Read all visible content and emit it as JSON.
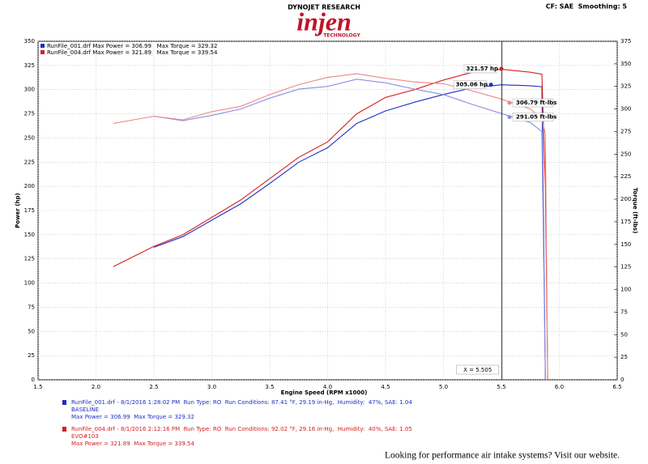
{
  "header": {
    "brand": "DYNOJET RESEARCH",
    "logo": "injen",
    "logo_sub": "TECHNOLOGY",
    "settings": "CF: SAE  Smoothing: 5"
  },
  "chart_data": {
    "type": "line",
    "xlabel": "Engine Speed (RPM x1000)",
    "ylabel": "Power (hp)",
    "y2label": "Torque (ft-lbs)",
    "x": [
      2.15,
      2.5,
      2.75,
      3,
      3.25,
      3.5,
      3.75,
      4,
      4.25,
      4.5,
      4.75,
      5,
      5.25,
      5.5,
      5.75,
      5.85,
      5.88,
      5.9
    ],
    "series": [
      {
        "color": "#1f2fbf",
        "axis": "y",
        "values": [
          null,
          137,
          148,
          165,
          182,
          203,
          225,
          240,
          265,
          278,
          287,
          295,
          302,
          305,
          304,
          303,
          0,
          null
        ]
      },
      {
        "color": "#d42020",
        "axis": "y",
        "values": [
          117,
          138,
          150,
          168,
          186,
          208,
          230,
          246,
          275,
          292,
          300,
          310,
          318,
          321,
          318,
          316,
          200,
          0
        ]
      },
      {
        "color": "#8a8fe0",
        "axis": "y2",
        "values": [
          null,
          292,
          287,
          293,
          300,
          312,
          322,
          325,
          333,
          329,
          322,
          316,
          305,
          295,
          285,
          275,
          0,
          null
        ]
      },
      {
        "color": "#e88a8a",
        "axis": "y2",
        "values": [
          284,
          292,
          288,
          297,
          303,
          316,
          327,
          335,
          339,
          334,
          330,
          328,
          320,
          311,
          300,
          289,
          272,
          0
        ]
      }
    ],
    "legend": [
      "RunFile_001.drf Max Power = 306.99   Max Torque = 329.32",
      "RunFile_004.drf Max Power = 321.89   Max Torque = 339.54"
    ],
    "xlim": [
      1.5,
      6.5
    ],
    "xticks": [
      1.5,
      {
        "value": 2,
        "label": "2.0"
      },
      2.5,
      {
        "value": 3,
        "label": "3.0"
      },
      3.5,
      {
        "value": 4,
        "label": "4.0"
      },
      4.5,
      {
        "value": 5,
        "label": "5.0"
      },
      5.5,
      {
        "value": 6,
        "label": "6.0"
      },
      6.5
    ],
    "ylim": [
      0,
      350
    ],
    "yticks": [
      0,
      25,
      50,
      75,
      100,
      125,
      150,
      175,
      200,
      225,
      250,
      275,
      300,
      325,
      350
    ],
    "y2lim": [
      0,
      375
    ],
    "y2ticks": [
      0,
      25,
      50,
      75,
      100,
      125,
      150,
      175,
      200,
      225,
      250,
      275,
      300,
      325,
      350,
      375
    ],
    "grid": true,
    "cursor": {
      "x": 5.505,
      "label": "X = 5.505"
    },
    "annotations": [
      {
        "x": 5.5,
        "y": 321.57,
        "axis": "y",
        "color": "#d42020",
        "label": "321.57 hp"
      },
      {
        "x": 5.41,
        "y": 305.06,
        "axis": "y",
        "color": "#1f2fbf",
        "label": "305.06 hp"
      },
      {
        "x": 5.57,
        "y": 306.79,
        "axis": "y2",
        "color": "#e88a8a",
        "label": "306.79 ft-lbs"
      },
      {
        "x": 5.57,
        "y": 291.05,
        "axis": "y2",
        "color": "#8a8fe0",
        "label": "291.05 ft-lbs"
      }
    ]
  },
  "runs": [
    {
      "lines": [
        "RunFile_001.drf - 8/1/2016 1:28:02 PM  Run Type: RO  Run Conditions: 87.41 °F, 29.19 in-Hg,  Humidity:  47%, SAE: 1.04",
        "BASELINE",
        "Max Power = 306.99  Max Torque = 329.32"
      ]
    },
    {
      "lines": [
        "RunFile_004.drf - 8/1/2016 2:12:16 PM  Run Type: RO  Run Conditions: 92.02 °F, 29.16 in-Hg,  Humidity:  40%, SAE: 1.05",
        "EVO#103",
        "Max Power = 321.89  Max Torque = 339.54"
      ]
    }
  ],
  "footer": "Looking for performance air intake systems? Visit our website."
}
